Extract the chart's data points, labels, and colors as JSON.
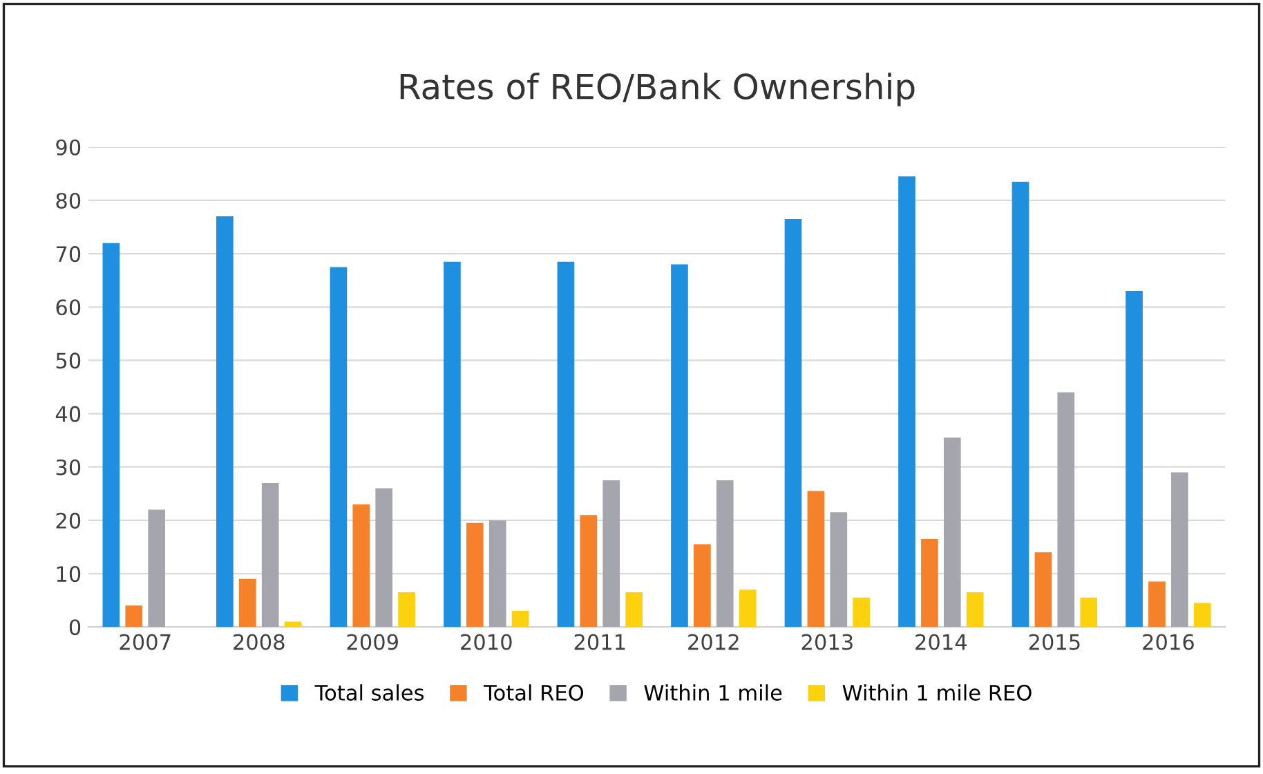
{
  "chart_data": {
    "type": "bar",
    "title": "Rates of REO/Bank Ownership",
    "categories": [
      "2007",
      "2008",
      "2009",
      "2010",
      "2011",
      "2012",
      "2013",
      "2014",
      "2015",
      "2016"
    ],
    "series": [
      {
        "name": "Total sales",
        "color": "#1f8fe0",
        "values": [
          72,
          77,
          67.5,
          68.5,
          68.5,
          68,
          76.5,
          84.5,
          83.5,
          63
        ]
      },
      {
        "name": "Total REO",
        "color": "#f5822a",
        "values": [
          4,
          9,
          23,
          19.5,
          21,
          15.5,
          25.5,
          16.5,
          14,
          8.5
        ]
      },
      {
        "name": "Within 1 mile",
        "color": "#a5a5ad",
        "values": [
          22,
          27,
          26,
          20,
          27.5,
          27.5,
          21.5,
          35.5,
          44,
          29
        ]
      },
      {
        "name": "Within 1 mile REO",
        "color": "#fcd20f",
        "values": [
          0,
          1,
          6.5,
          3,
          6.5,
          7,
          5.5,
          6.5,
          5.5,
          4.5
        ]
      }
    ],
    "ylim": [
      0,
      90
    ],
    "yticks": [
      0,
      10,
      20,
      30,
      40,
      50,
      60,
      70,
      80,
      90
    ],
    "grid": "y",
    "legend": "bottom"
  }
}
